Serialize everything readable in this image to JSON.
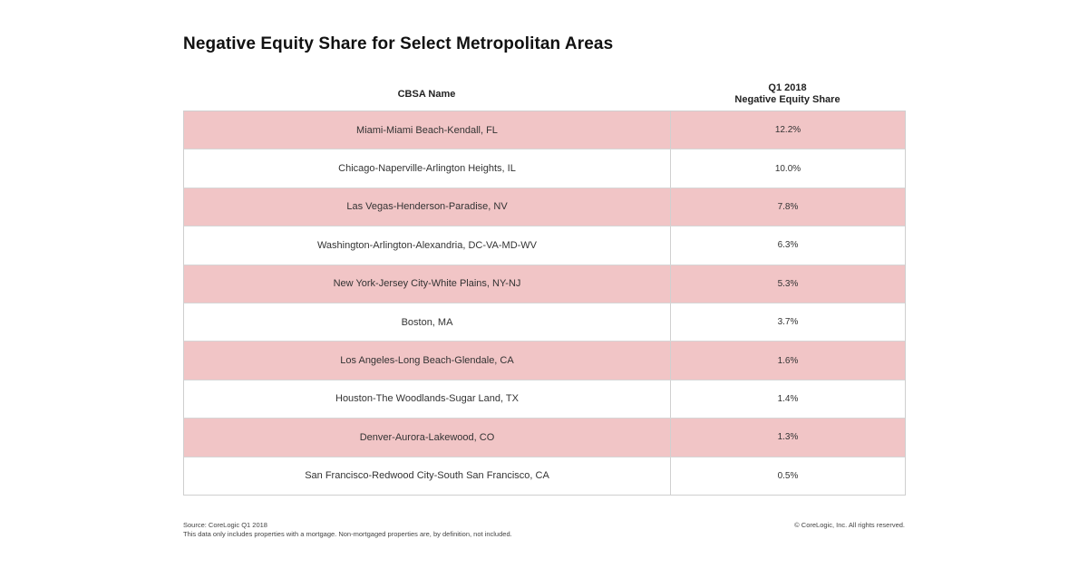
{
  "chart_data": {
    "type": "table",
    "title": "Negative Equity Share for Select Metropolitan Areas",
    "columns": {
      "name": "CBSA Name",
      "share_line1": "Q1 2018",
      "share_line2": "Negative Equity Share"
    },
    "rows": [
      {
        "name": "Miami-Miami Beach-Kendall, FL",
        "share": "12.2%"
      },
      {
        "name": "Chicago-Naperville-Arlington Heights, IL",
        "share": "10.0%"
      },
      {
        "name": "Las Vegas-Henderson-Paradise, NV",
        "share": "7.8%"
      },
      {
        "name": "Washington-Arlington-Alexandria, DC-VA-MD-WV",
        "share": "6.3%"
      },
      {
        "name": "New York-Jersey City-White Plains, NY-NJ",
        "share": "5.3%"
      },
      {
        "name": "Boston, MA",
        "share": "3.7%"
      },
      {
        "name": "Los Angeles-Long Beach-Glendale, CA",
        "share": "1.6%"
      },
      {
        "name": "Houston-The Woodlands-Sugar Land, TX",
        "share": "1.4%"
      },
      {
        "name": "Denver-Aurora-Lakewood, CO",
        "share": "1.3%"
      },
      {
        "name": "San Francisco-Redwood City-South San Francisco, CA",
        "share": "0.5%"
      }
    ],
    "shaded_color": "#f1c5c6"
  },
  "footer": {
    "source": "Source: CoreLogic Q1 2018",
    "note": "This data only includes properties with a mortgage. Non-mortgaged properties are, by definition, not included.",
    "copyright": "© CoreLogic, Inc. All rights reserved."
  }
}
